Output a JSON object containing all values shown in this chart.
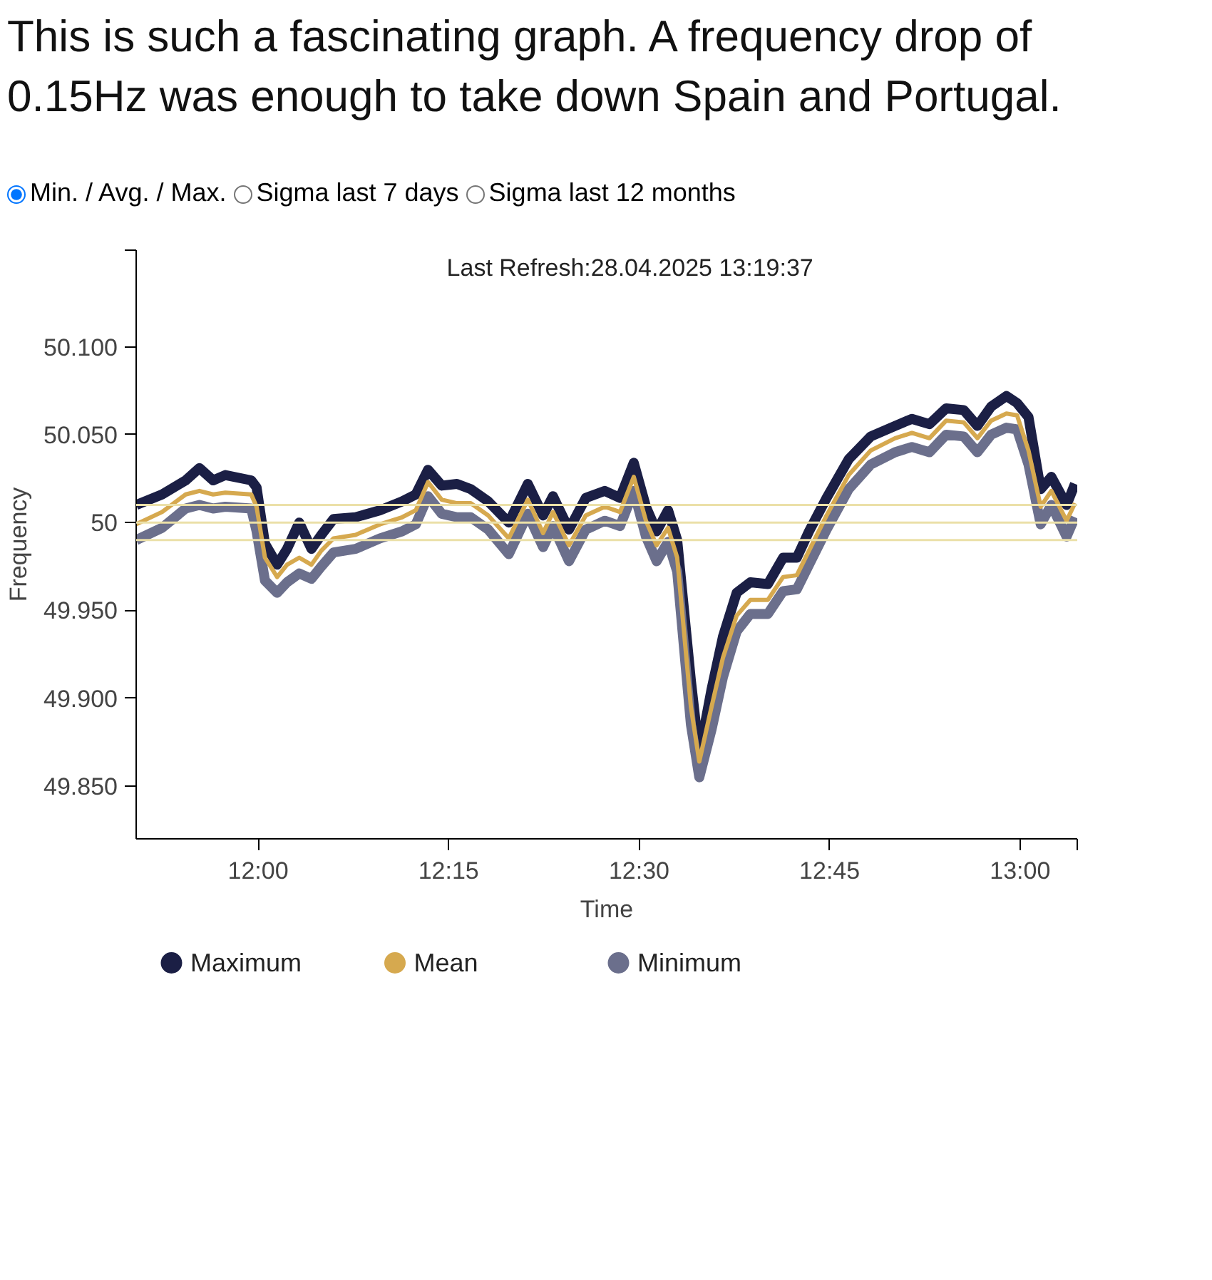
{
  "chart_data": {
    "type": "line",
    "title": "This is such a fascinating graph. A frequency drop of 0.15Hz was enough to take down Spain and Portugal.",
    "annotations": [
      "Min. / Avg. / Max.",
      "Sigma last 7 days",
      "Sigma last 12 months",
      "Last Refresh:28.04.2025 13:19:37"
    ],
    "xlabel": "Time",
    "ylabel": "Frequency",
    "x": [
      11.84,
      11.874,
      11.905,
      11.923,
      11.941,
      11.957,
      11.991,
      11.998,
      12.009,
      12.025,
      12.038,
      12.054,
      12.07,
      12.083,
      12.099,
      12.128,
      12.16,
      12.189,
      12.207,
      12.223,
      12.241,
      12.261,
      12.279,
      12.302,
      12.329,
      12.354,
      12.374,
      12.387,
      12.408,
      12.43,
      12.455,
      12.475,
      12.493,
      12.509,
      12.523,
      12.538,
      12.55,
      12.568,
      12.579,
      12.595,
      12.61,
      12.628,
      12.646,
      12.669,
      12.689,
      12.707,
      12.723,
      12.746,
      12.775,
      12.804,
      12.836,
      12.858,
      12.881,
      12.903,
      12.926,
      12.944,
      12.962,
      12.982,
      12.996,
      13.011,
      13.027,
      13.041,
      13.061,
      13.072
    ],
    "series": [
      {
        "name": "Maximum",
        "color": "#1b1f45",
        "values": [
          50.01,
          50.016,
          50.024,
          50.031,
          50.024,
          50.027,
          50.024,
          50.02,
          49.988,
          49.976,
          49.985,
          50.0,
          49.985,
          49.993,
          50.002,
          50.003,
          50.007,
          50.012,
          50.016,
          50.03,
          50.021,
          50.022,
          50.019,
          50.012,
          50.0,
          50.022,
          50.004,
          50.015,
          49.996,
          50.014,
          50.018,
          50.014,
          50.034,
          50.009,
          49.995,
          50.007,
          49.99,
          49.91,
          49.868,
          49.905,
          49.935,
          49.96,
          49.966,
          49.965,
          49.98,
          49.98,
          49.995,
          50.014,
          50.036,
          50.049,
          50.055,
          50.059,
          50.056,
          50.065,
          50.064,
          50.055,
          50.066,
          50.072,
          50.068,
          50.06,
          50.019,
          50.026,
          50.01,
          50.022
        ]
      },
      {
        "name": "Minimum",
        "color": "#6b6f8c",
        "values": [
          49.99,
          49.997,
          50.008,
          50.01,
          50.008,
          50.009,
          50.008,
          49.995,
          49.967,
          49.96,
          49.966,
          49.971,
          49.968,
          49.975,
          49.983,
          49.985,
          49.991,
          49.995,
          49.999,
          50.015,
          50.005,
          50.003,
          50.003,
          49.996,
          49.982,
          50.005,
          49.986,
          49.998,
          49.978,
          49.996,
          50.001,
          49.998,
          50.018,
          49.992,
          49.978,
          49.989,
          49.972,
          49.885,
          49.855,
          49.882,
          49.912,
          49.938,
          49.948,
          49.948,
          49.961,
          49.962,
          49.976,
          49.996,
          50.019,
          50.033,
          50.04,
          50.043,
          50.04,
          50.05,
          50.049,
          50.04,
          50.05,
          50.054,
          50.053,
          50.033,
          49.999,
          50.01,
          49.992,
          50.003
        ]
      },
      {
        "name": "Mean",
        "color": "#d6a94f",
        "values": [
          49.999,
          50.006,
          50.016,
          50.018,
          50.016,
          50.017,
          50.016,
          50.009,
          49.98,
          49.969,
          49.976,
          49.98,
          49.976,
          49.984,
          49.991,
          49.993,
          49.999,
          50.003,
          50.007,
          50.023,
          50.013,
          50.011,
          50.011,
          50.004,
          49.991,
          50.013,
          49.994,
          50.006,
          49.987,
          50.004,
          50.009,
          50.006,
          50.026,
          50.001,
          49.987,
          49.997,
          49.98,
          49.895,
          49.864,
          49.895,
          49.923,
          49.947,
          49.956,
          49.956,
          49.969,
          49.97,
          49.984,
          50.004,
          50.027,
          50.041,
          50.048,
          50.051,
          50.048,
          50.058,
          50.057,
          50.048,
          50.058,
          50.062,
          50.061,
          50.041,
          50.009,
          50.018,
          50.001,
          50.011
        ]
      }
    ],
    "xlim": [
      11.84,
      13.075
    ],
    "xticks": [
      {
        "value": 12,
        "label": "12:00"
      },
      {
        "value": 12.25,
        "label": "12:15"
      },
      {
        "value": 12.5,
        "label": "12:30"
      },
      {
        "value": 12.75,
        "label": "12:45"
      },
      {
        "value": 13,
        "label": "13:00"
      },
      {
        "value": 13.075,
        "label": null
      }
    ],
    "ylim": [
      49.82,
      50.155
    ],
    "yticks": [
      {
        "value": 49.85,
        "label": "49.850"
      },
      {
        "value": 49.9,
        "label": "49.900"
      },
      {
        "value": 49.95,
        "label": "49.950"
      },
      50,
      {
        "value": 50.05,
        "label": "50.050"
      },
      {
        "value": 50.1,
        "label": "50.100"
      },
      {
        "value": 50.155,
        "label": null
      }
    ],
    "ref_lines": [
      {
        "axis": "y",
        "value": 50.01,
        "color": "#ebe0a8"
      },
      {
        "axis": "y",
        "value": 50,
        "color": "#ebe0a8"
      },
      {
        "axis": "y",
        "value": 49.99,
        "color": "#ebe0a8"
      }
    ],
    "grid": false,
    "legend": "bottom",
    "marker": "none",
    "line_style": "solid"
  }
}
